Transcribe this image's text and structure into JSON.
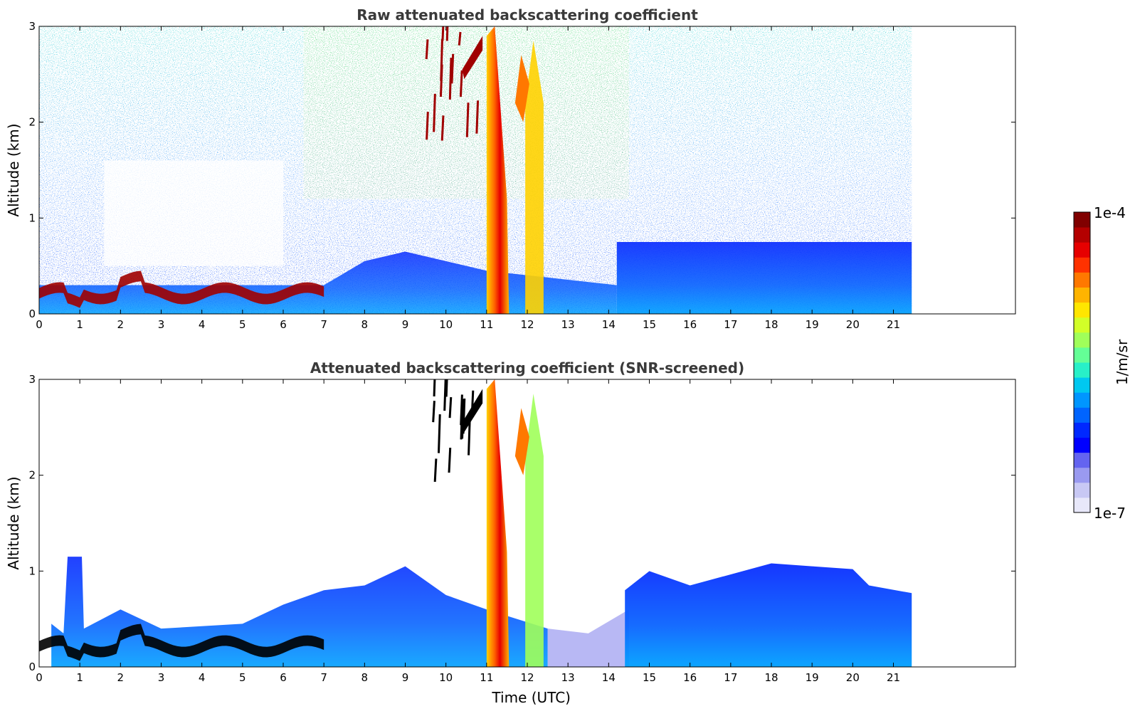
{
  "chart_data": [
    {
      "type": "heatmap",
      "title": "Raw attenuated backscattering coefficient",
      "xlabel": "",
      "ylabel": "Altitude (km)",
      "xlim": [
        0,
        24
      ],
      "ylim": [
        0,
        3
      ],
      "data_xlim": [
        0,
        21.45
      ],
      "xticks": [
        0,
        1,
        2,
        3,
        4,
        5,
        6,
        7,
        8,
        9,
        10,
        11,
        12,
        13,
        14,
        15,
        16,
        17,
        18,
        19,
        20,
        21
      ],
      "yticks": [
        0,
        1,
        2,
        3
      ],
      "screened": false
    },
    {
      "type": "heatmap",
      "title": "Attenuated backscattering coefficient (SNR-screened)",
      "xlabel": "Time (UTC)",
      "ylabel": "Altitude (km)",
      "xlim": [
        0,
        24
      ],
      "ylim": [
        0,
        3
      ],
      "data_xlim": [
        0,
        21.45
      ],
      "xticks": [
        0,
        1,
        2,
        3,
        4,
        5,
        6,
        7,
        8,
        9,
        10,
        11,
        12,
        13,
        14,
        15,
        16,
        17,
        18,
        19,
        20,
        21
      ],
      "yticks": [
        0,
        1,
        2,
        3
      ],
      "screened": true
    }
  ],
  "colorbar": {
    "label": "1/m/sr",
    "min_label": "1e-7",
    "max_label": "1e-4",
    "colors": [
      "#e8e8fa",
      "#c8c8f4",
      "#9a9af0",
      "#6464f0",
      "#0000ff",
      "#0028ff",
      "#0064ff",
      "#0096ff",
      "#00c8f0",
      "#28f0c8",
      "#64ff96",
      "#a0ff5a",
      "#d2ff28",
      "#ffe600",
      "#ffb400",
      "#ff7800",
      "#ff3200",
      "#e60000",
      "#b40000",
      "#800000"
    ]
  }
}
